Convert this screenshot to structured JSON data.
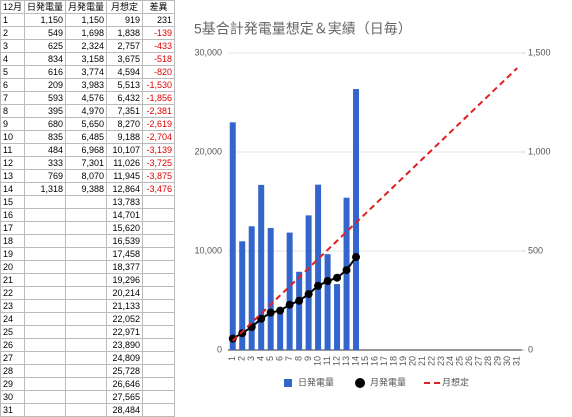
{
  "table": {
    "header": [
      "12月",
      "日発電量",
      "月発電量",
      "月想定",
      "差異"
    ],
    "rows": [
      [
        "1",
        "1,150",
        "1,150",
        "919",
        "231"
      ],
      [
        "2",
        "549",
        "1,698",
        "1,838",
        "-139"
      ],
      [
        "3",
        "625",
        "2,324",
        "2,757",
        "-433"
      ],
      [
        "4",
        "834",
        "3,158",
        "3,675",
        "-518"
      ],
      [
        "5",
        "616",
        "3,774",
        "4,594",
        "-820"
      ],
      [
        "6",
        "209",
        "3,983",
        "5,513",
        "-1,530"
      ],
      [
        "7",
        "593",
        "4,576",
        "6,432",
        "-1,856"
      ],
      [
        "8",
        "395",
        "4,970",
        "7,351",
        "-2,381"
      ],
      [
        "9",
        "680",
        "5,650",
        "8,270",
        "-2,619"
      ],
      [
        "10",
        "835",
        "6,485",
        "9,188",
        "-2,704"
      ],
      [
        "11",
        "484",
        "6,968",
        "10,107",
        "-3,139"
      ],
      [
        "12",
        "333",
        "7,301",
        "11,026",
        "-3,725"
      ],
      [
        "13",
        "769",
        "8,070",
        "11,945",
        "-3,875"
      ],
      [
        "14",
        "1,318",
        "9,388",
        "12,864",
        "-3,476"
      ],
      [
        "15",
        null,
        null,
        "13,783",
        null
      ],
      [
        "16",
        null,
        null,
        "14,701",
        null
      ],
      [
        "17",
        null,
        null,
        "15,620",
        null
      ],
      [
        "18",
        null,
        null,
        "16,539",
        null
      ],
      [
        "19",
        null,
        null,
        "17,458",
        null
      ],
      [
        "20",
        null,
        null,
        "18,377",
        null
      ],
      [
        "21",
        null,
        null,
        "19,296",
        null
      ],
      [
        "22",
        null,
        null,
        "20,214",
        null
      ],
      [
        "23",
        null,
        null,
        "21,133",
        null
      ],
      [
        "24",
        null,
        null,
        "22,052",
        null
      ],
      [
        "25",
        null,
        null,
        "22,971",
        null
      ],
      [
        "26",
        null,
        null,
        "23,890",
        null
      ],
      [
        "27",
        null,
        null,
        "24,809",
        null
      ],
      [
        "28",
        null,
        null,
        "25,728",
        null
      ],
      [
        "29",
        null,
        null,
        "26,646",
        null
      ],
      [
        "30",
        null,
        null,
        "27,565",
        null
      ],
      [
        "31",
        null,
        null,
        "28,484",
        null
      ]
    ]
  },
  "chart_data": {
    "type": "bar",
    "title": "5基合計発電量想定＆実績（日毎）",
    "categories": [
      "1",
      "2",
      "3",
      "4",
      "5",
      "6",
      "7",
      "8",
      "9",
      "10",
      "11",
      "12",
      "13",
      "14",
      "15",
      "16",
      "17",
      "18",
      "19",
      "20",
      "21",
      "22",
      "23",
      "24",
      "25",
      "26",
      "27",
      "28",
      "29",
      "30",
      "31"
    ],
    "series": [
      {
        "name": "日発電量",
        "color": "#3366cc",
        "type": "bar",
        "axis": "y2",
        "values": [
          1150,
          549,
          625,
          834,
          616,
          209,
          593,
          395,
          680,
          835,
          484,
          333,
          769,
          1318,
          null,
          null,
          null,
          null,
          null,
          null,
          null,
          null,
          null,
          null,
          null,
          null,
          null,
          null,
          null,
          null,
          null
        ]
      },
      {
        "name": "月発電量",
        "color": "#000000",
        "type": "line-marker",
        "values": [
          1150,
          1698,
          2324,
          3158,
          3774,
          3983,
          4576,
          4970,
          5650,
          6485,
          6968,
          7301,
          8070,
          9388,
          null,
          null,
          null,
          null,
          null,
          null,
          null,
          null,
          null,
          null,
          null,
          null,
          null,
          null,
          null,
          null,
          null
        ]
      },
      {
        "name": "月想定",
        "color": "#e02020",
        "type": "dashed-line",
        "values": [
          919,
          1838,
          2757,
          3675,
          4594,
          5513,
          6432,
          7351,
          8270,
          9188,
          10107,
          11026,
          11945,
          12864,
          13783,
          14701,
          15620,
          16539,
          17458,
          18377,
          19296,
          20214,
          21133,
          22052,
          22971,
          23890,
          24809,
          25728,
          26646,
          27565,
          28484
        ]
      }
    ],
    "ylim": [
      0,
      30000
    ],
    "yticks": [
      0,
      {
        "value": 10000,
        "label": "10,000"
      },
      {
        "value": 20000,
        "label": "20,000"
      },
      {
        "value": 30000,
        "label": "30,000"
      }
    ],
    "y2lim": [
      0,
      1500
    ],
    "y2ticks": [
      0,
      500,
      {
        "value": 1000,
        "label": "1,000"
      },
      {
        "value": 1500,
        "label": "1,500"
      }
    ],
    "legend": "bottom"
  }
}
